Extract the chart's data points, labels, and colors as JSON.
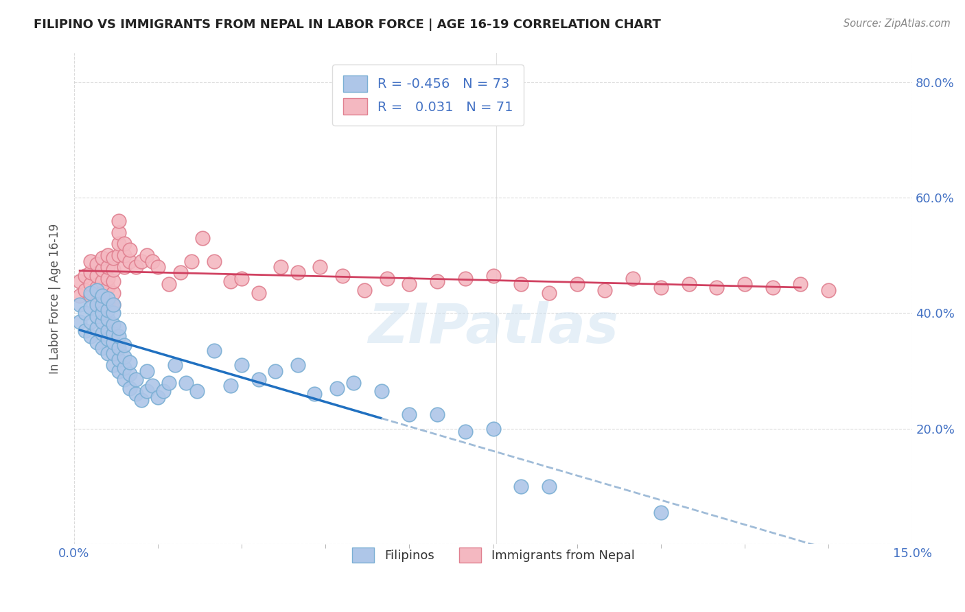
{
  "title": "FILIPINO VS IMMIGRANTS FROM NEPAL IN LABOR FORCE | AGE 16-19 CORRELATION CHART",
  "source": "Source: ZipAtlas.com",
  "ylabel": "In Labor Force | Age 16-19",
  "xlim": [
    0.0,
    0.15
  ],
  "ylim": [
    0.0,
    0.85
  ],
  "ytick_labels": [
    "",
    "20.0%",
    "40.0%",
    "60.0%",
    "80.0%"
  ],
  "ytick_vals": [
    0.0,
    0.2,
    0.4,
    0.6,
    0.8
  ],
  "watermark": "ZIPatlas",
  "legend_R_filipino": "-0.456",
  "legend_N_filipino": "73",
  "legend_R_nepal": "0.031",
  "legend_N_nepal": "71",
  "filipino_color": "#aec6e8",
  "nepal_color": "#f4b8c1",
  "filipino_line_color": "#2070c0",
  "nepal_line_color": "#d04060",
  "trend_dash_color": "#a0bcd8",
  "filipino_dot_edge": "#7bafd4",
  "nepal_dot_edge": "#e08090",
  "fil_trend_solid_end": 0.055,
  "fil_trend_dash_end": 0.15,
  "nep_trend_start": 0.001,
  "nep_trend_end": 0.13,
  "fil_scatter_x": [
    0.001,
    0.001,
    0.002,
    0.002,
    0.003,
    0.003,
    0.003,
    0.003,
    0.004,
    0.004,
    0.004,
    0.004,
    0.004,
    0.005,
    0.005,
    0.005,
    0.005,
    0.005,
    0.005,
    0.006,
    0.006,
    0.006,
    0.006,
    0.006,
    0.006,
    0.007,
    0.007,
    0.007,
    0.007,
    0.007,
    0.007,
    0.007,
    0.008,
    0.008,
    0.008,
    0.008,
    0.008,
    0.009,
    0.009,
    0.009,
    0.009,
    0.01,
    0.01,
    0.01,
    0.011,
    0.011,
    0.012,
    0.013,
    0.013,
    0.014,
    0.015,
    0.016,
    0.017,
    0.018,
    0.02,
    0.022,
    0.025,
    0.028,
    0.03,
    0.033,
    0.036,
    0.04,
    0.043,
    0.047,
    0.05,
    0.055,
    0.06,
    0.065,
    0.07,
    0.075,
    0.08,
    0.085,
    0.105
  ],
  "fil_scatter_y": [
    0.385,
    0.415,
    0.37,
    0.4,
    0.36,
    0.385,
    0.41,
    0.435,
    0.35,
    0.375,
    0.395,
    0.415,
    0.44,
    0.34,
    0.365,
    0.385,
    0.4,
    0.415,
    0.43,
    0.33,
    0.355,
    0.37,
    0.39,
    0.405,
    0.425,
    0.31,
    0.33,
    0.35,
    0.365,
    0.38,
    0.4,
    0.415,
    0.3,
    0.32,
    0.34,
    0.36,
    0.375,
    0.285,
    0.305,
    0.325,
    0.345,
    0.27,
    0.295,
    0.315,
    0.26,
    0.285,
    0.25,
    0.3,
    0.265,
    0.275,
    0.255,
    0.265,
    0.28,
    0.31,
    0.28,
    0.265,
    0.335,
    0.275,
    0.31,
    0.285,
    0.3,
    0.31,
    0.26,
    0.27,
    0.28,
    0.265,
    0.225,
    0.225,
    0.195,
    0.2,
    0.1,
    0.1,
    0.055
  ],
  "nep_scatter_x": [
    0.001,
    0.001,
    0.002,
    0.002,
    0.003,
    0.003,
    0.003,
    0.003,
    0.004,
    0.004,
    0.004,
    0.004,
    0.005,
    0.005,
    0.005,
    0.005,
    0.005,
    0.006,
    0.006,
    0.006,
    0.006,
    0.006,
    0.007,
    0.007,
    0.007,
    0.007,
    0.007,
    0.008,
    0.008,
    0.008,
    0.008,
    0.009,
    0.009,
    0.009,
    0.01,
    0.01,
    0.011,
    0.012,
    0.013,
    0.014,
    0.015,
    0.017,
    0.019,
    0.021,
    0.023,
    0.025,
    0.028,
    0.03,
    0.033,
    0.037,
    0.04,
    0.044,
    0.048,
    0.052,
    0.056,
    0.06,
    0.065,
    0.07,
    0.075,
    0.08,
    0.085,
    0.09,
    0.095,
    0.1,
    0.105,
    0.11,
    0.115,
    0.12,
    0.125,
    0.13,
    0.135
  ],
  "nep_scatter_y": [
    0.43,
    0.455,
    0.44,
    0.465,
    0.43,
    0.45,
    0.47,
    0.49,
    0.42,
    0.445,
    0.465,
    0.485,
    0.415,
    0.435,
    0.455,
    0.475,
    0.495,
    0.42,
    0.445,
    0.46,
    0.48,
    0.5,
    0.415,
    0.435,
    0.455,
    0.475,
    0.495,
    0.5,
    0.52,
    0.54,
    0.56,
    0.48,
    0.5,
    0.52,
    0.49,
    0.51,
    0.48,
    0.49,
    0.5,
    0.49,
    0.48,
    0.45,
    0.47,
    0.49,
    0.53,
    0.49,
    0.455,
    0.46,
    0.435,
    0.48,
    0.47,
    0.48,
    0.465,
    0.44,
    0.46,
    0.45,
    0.455,
    0.46,
    0.465,
    0.45,
    0.435,
    0.45,
    0.44,
    0.46,
    0.445,
    0.45,
    0.445,
    0.45,
    0.445,
    0.45,
    0.44
  ]
}
